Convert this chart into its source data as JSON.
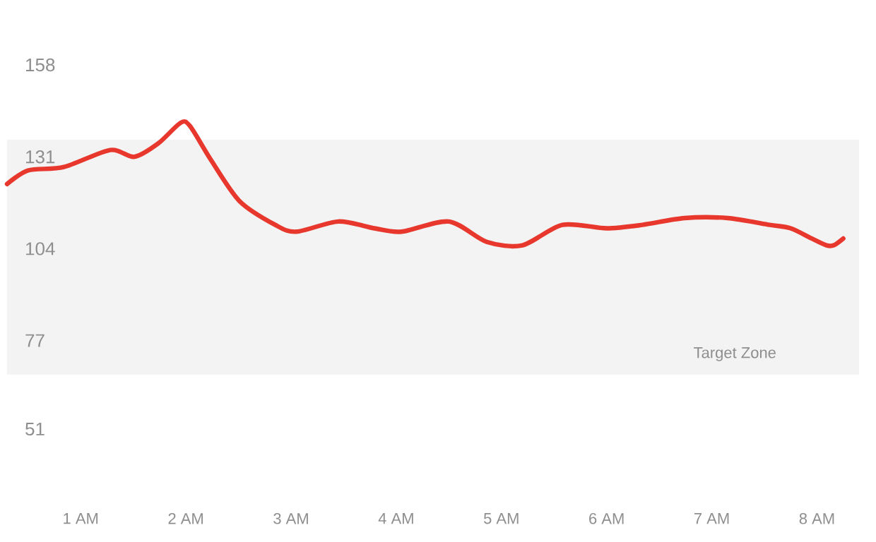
{
  "chart_data": {
    "type": "line",
    "x": [
      0.3,
      0.5,
      0.84,
      1.28,
      1.51,
      1.74,
      1.95,
      2.04,
      2.24,
      2.51,
      2.85,
      3.05,
      3.45,
      3.79,
      4.05,
      4.5,
      4.86,
      5.2,
      5.58,
      6.0,
      6.34,
      6.74,
      7.15,
      7.55,
      7.75,
      7.95,
      8.09,
      8.16,
      8.25
    ],
    "series": [
      {
        "color": "#e8372c",
        "values": [
          123,
          127,
          128,
          133,
          131,
          135,
          141,
          140,
          130,
          118,
          111,
          109,
          112,
          110,
          109,
          112,
          106,
          105,
          111,
          110,
          111,
          113,
          113,
          111,
          110,
          107,
          105,
          105,
          107
        ]
      }
    ],
    "xlim": [
      0.3,
      8.4
    ],
    "ylim": [
      51,
      158
    ],
    "xticks": [
      {
        "value": 1,
        "label": "1 AM"
      },
      {
        "value": 2,
        "label": "2 AM"
      },
      {
        "value": 3,
        "label": "3 AM"
      },
      {
        "value": 4,
        "label": "4 AM"
      },
      {
        "value": 5,
        "label": "5 AM"
      },
      {
        "value": 6,
        "label": "6 AM"
      },
      {
        "value": 7,
        "label": "7 AM"
      },
      {
        "value": 8,
        "label": "8 AM"
      }
    ],
    "yticks": [
      51,
      77,
      104,
      131,
      158
    ],
    "bands": [
      {
        "axis": "y",
        "from": 67,
        "to": 136,
        "label": "Target Zone",
        "color": "#f3f3f3"
      }
    ],
    "grid": false,
    "marker": "none",
    "line_style": "solid"
  }
}
